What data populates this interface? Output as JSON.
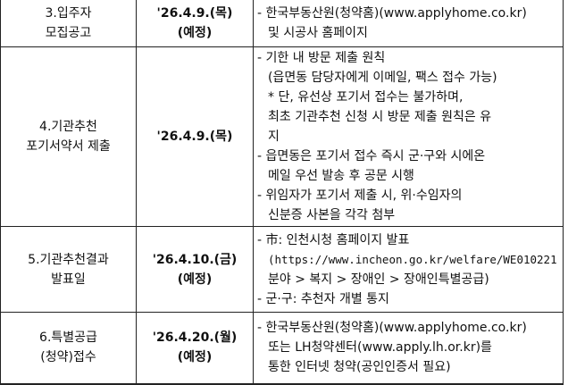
{
  "rows": [
    {
      "step": [
        "3.입주자",
        "모집공고"
      ],
      "date": [
        "'26.4.9.(목)",
        "(예정)"
      ],
      "details": [
        {
          "text": "- 한국부동산원(청약홈)(www.applyhome.co.kr)",
          "indent": false
        },
        {
          "text": "및 시공사 홈페이지",
          "indent": true
        }
      ]
    },
    {
      "step": [
        "4.기관추천",
        "포기서약서 제출"
      ],
      "date": [
        "'26.4.9.(목)"
      ],
      "details": [
        {
          "text": "- 기한 내 방문 제출 원칙",
          "indent": false
        },
        {
          "text": "(읍면동 담당자에게 이메일, 팩스 접수 가능)",
          "indent": true
        },
        {
          "text": "* 단, 유선상 포기서 접수는 불가하며,",
          "indent": true
        },
        {
          "text": " 최초 기관추천 신청 시 방문 제출 원칙은 유",
          "indent": true
        },
        {
          "text": "지",
          "indent": true
        },
        {
          "text": "- 읍면동은 포기서 접수 즉시 군·구와 시에온",
          "indent": false
        },
        {
          "text": "메일 우선 발송 후 공문 시행",
          "indent": true
        },
        {
          "text": "- 위임자가 포기서 제출 시, 위·수임자의",
          "indent": false
        },
        {
          "text": "신분증 사본을 각각 첨부",
          "indent": true
        }
      ]
    },
    {
      "step": [
        "5.기관추천결과",
        "발표일"
      ],
      "date": [
        "'26.4.10.(금)",
        "(예정)"
      ],
      "details": [
        {
          "text": "- 市: 인천시청 홈페이지 발표",
          "indent": false
        },
        {
          "text": "(https://www.incheon.go.kr/welfare/WE010221",
          "indent": true,
          "mono": true
        },
        {
          "text": "분야 > 복지 > 장애인 > 장애인특별공급)",
          "indent": true
        },
        {
          "text": "- 군·구: 추천자 개별 통지",
          "indent": false
        }
      ]
    },
    {
      "step": [
        "6.특별공급",
        "(청약)접수"
      ],
      "date": [
        "'26.4.20.(월)",
        "(예정)"
      ],
      "details": [
        {
          "text": "-   한국부동산원(청약홈)(www.applyhome.co.kr)",
          "indent": false
        },
        {
          "text": "또는 LH청약센터(www.apply.lh.or.kr)를",
          "indent": true
        },
        {
          "text": "통한 인터넷 청약(공인인증서 필요)",
          "indent": true
        }
      ]
    }
  ]
}
